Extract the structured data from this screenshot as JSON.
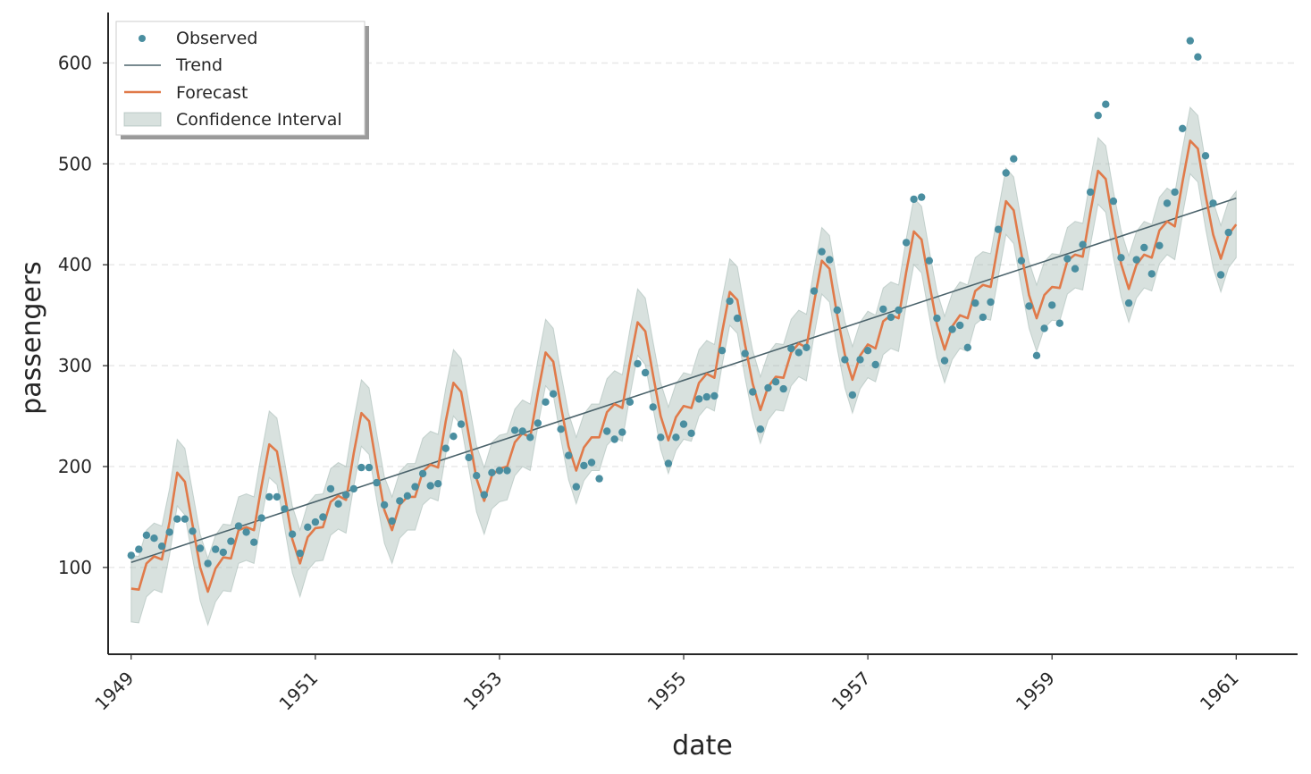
{
  "chart_data": {
    "type": "line",
    "title": "",
    "xlabel": "date",
    "ylabel": "passengers",
    "x_start": "1949-01",
    "xlim": [
      "1948-10",
      "1961-09"
    ],
    "ylim": [
      14,
      650
    ],
    "x_ticks": [
      "1949",
      "1951",
      "1953",
      "1955",
      "1957",
      "1959",
      "1961"
    ],
    "y_ticks": [
      100,
      200,
      300,
      400,
      500,
      600
    ],
    "grid": "horizontal dashed",
    "legend_position": "top-left",
    "legend": [
      "Observed",
      "Trend",
      "Forecast",
      "Confidence Interval"
    ],
    "colors": {
      "observed": "#4a8ea0",
      "trend": "#4b636b",
      "forecast": "#e07a4a",
      "ci": "#9db3ad",
      "axis": "#262626",
      "grid": "#e8e8e8"
    },
    "observed": [
      112,
      118,
      132,
      129,
      121,
      135,
      148,
      148,
      136,
      119,
      104,
      118,
      115,
      126,
      141,
      135,
      125,
      149,
      170,
      170,
      158,
      133,
      114,
      140,
      145,
      150,
      178,
      163,
      172,
      178,
      199,
      199,
      184,
      162,
      146,
      166,
      171,
      180,
      193,
      181,
      183,
      218,
      230,
      242,
      209,
      191,
      172,
      194,
      196,
      196,
      236,
      235,
      229,
      243,
      264,
      272,
      237,
      211,
      180,
      201,
      204,
      188,
      235,
      227,
      234,
      264,
      302,
      293,
      259,
      229,
      203,
      229,
      242,
      233,
      267,
      269,
      270,
      315,
      364,
      347,
      312,
      274,
      237,
      278,
      284,
      277,
      317,
      313,
      318,
      374,
      413,
      405,
      355,
      306,
      271,
      306,
      315,
      301,
      356,
      348,
      355,
      422,
      465,
      467,
      404,
      347,
      305,
      336,
      340,
      318,
      362,
      348,
      363,
      435,
      491,
      505,
      404,
      359,
      310,
      337,
      360,
      342,
      406,
      396,
      420,
      472,
      548,
      559,
      463,
      407,
      362,
      405,
      417,
      391,
      419,
      461,
      472,
      535,
      622,
      606,
      508,
      461,
      390,
      432
    ],
    "trend": [
      105,
      466
    ],
    "forecast": [
      79,
      78,
      104,
      111,
      108,
      145,
      194,
      185,
      142,
      100,
      76,
      99,
      110,
      109,
      137,
      140,
      137,
      181,
      222,
      215,
      172,
      128,
      104,
      130,
      139,
      140,
      165,
      171,
      167,
      213,
      253,
      245,
      200,
      157,
      137,
      162,
      170,
      170,
      195,
      202,
      199,
      245,
      283,
      274,
      231,
      188,
      166,
      191,
      198,
      200,
      224,
      233,
      229,
      273,
      313,
      304,
      260,
      220,
      196,
      219,
      229,
      229,
      254,
      262,
      258,
      303,
      343,
      334,
      291,
      250,
      226,
      249,
      260,
      258,
      283,
      292,
      288,
      333,
      373,
      365,
      321,
      282,
      256,
      279,
      289,
      288,
      313,
      322,
      318,
      363,
      404,
      396,
      350,
      311,
      286,
      310,
      321,
      317,
      344,
      350,
      347,
      393,
      433,
      425,
      382,
      341,
      316,
      339,
      350,
      347,
      374,
      380,
      378,
      421,
      463,
      454,
      411,
      370,
      347,
      370,
      378,
      377,
      404,
      410,
      408,
      452,
      493,
      485,
      440,
      401,
      376,
      400,
      410,
      407,
      434,
      443,
      438,
      482,
      523,
      515,
      469,
      430,
      406,
      430,
      440
    ],
    "ci_half_width": 33
  }
}
